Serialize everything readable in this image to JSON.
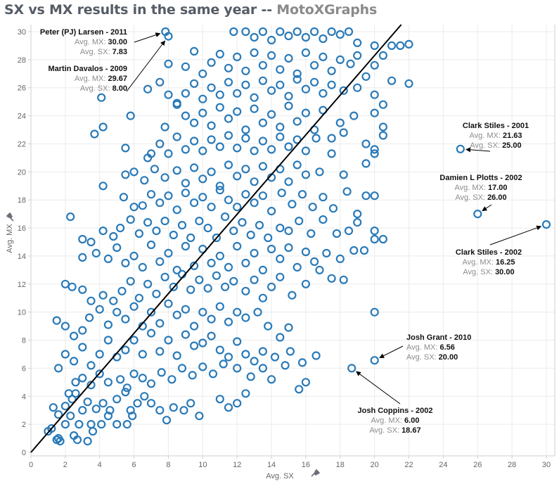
{
  "title": {
    "main": "SX vs MX results in the same year -- ",
    "brand": "MotoXGraphs"
  },
  "colors": {
    "marker": "#2a7ab8",
    "trend": "#000000",
    "grid": "#ebebeb",
    "axis": "#cfcfcf"
  },
  "chart_data": {
    "type": "scatter",
    "title": "SX vs MX results in the same year -- MotoXGraphs",
    "xlabel": "Avg. SX",
    "ylabel": "Avg. MX",
    "xlim": [
      0,
      30.5
    ],
    "ylim": [
      0,
      30.8
    ],
    "xticks": [
      0,
      2,
      4,
      6,
      8,
      10,
      12,
      14,
      16,
      18,
      20,
      22,
      24,
      26,
      28,
      30
    ],
    "yticks": [
      0,
      2,
      4,
      6,
      8,
      10,
      12,
      14,
      16,
      18,
      20,
      22,
      24,
      26,
      28,
      30
    ],
    "grid": true,
    "marker": "open-circle",
    "trend_line": {
      "slope": 1.415,
      "intercept": 0
    },
    "points": [
      [
        1.0,
        1.5
      ],
      [
        1.2,
        1.7
      ],
      [
        1.5,
        0.9
      ],
      [
        1.6,
        1.0
      ],
      [
        1.7,
        0.8
      ],
      [
        2.5,
        1.2
      ],
      [
        2.7,
        0.9
      ],
      [
        3.3,
        0.8
      ],
      [
        3.6,
        1.5
      ],
      [
        2.0,
        2.0
      ],
      [
        2.3,
        2.6
      ],
      [
        2.8,
        2.0
      ],
      [
        3.5,
        2.0
      ],
      [
        4.1,
        2.0
      ],
      [
        4.5,
        2.6
      ],
      [
        5.0,
        2.0
      ],
      [
        5.6,
        2.0
      ],
      [
        5.9,
        2.6
      ],
      [
        1.3,
        3.2
      ],
      [
        1.6,
        2.7
      ],
      [
        2.0,
        3.3
      ],
      [
        2.4,
        3.8
      ],
      [
        2.6,
        4.2
      ],
      [
        3.0,
        3.0
      ],
      [
        3.3,
        3.6
      ],
      [
        3.8,
        3.1
      ],
      [
        4.2,
        3.5
      ],
      [
        4.6,
        3.0
      ],
      [
        5.0,
        3.8
      ],
      [
        5.5,
        4.3
      ],
      [
        5.8,
        3.0
      ],
      [
        6.2,
        3.5
      ],
      [
        6.6,
        4.0
      ],
      [
        7.0,
        3.5
      ],
      [
        7.5,
        3.0
      ],
      [
        7.9,
        2.3
      ],
      [
        8.3,
        3.2
      ],
      [
        8.9,
        3.0
      ],
      [
        9.3,
        3.5
      ],
      [
        9.8,
        2.6
      ],
      [
        11.0,
        3.8
      ],
      [
        11.5,
        3.2
      ],
      [
        12.0,
        3.5
      ],
      [
        12.5,
        4.2
      ],
      [
        2.2,
        4.2
      ],
      [
        2.6,
        5.0
      ],
      [
        3.0,
        5.3
      ],
      [
        3.5,
        4.8
      ],
      [
        4.0,
        5.6
      ],
      [
        4.5,
        5.0
      ],
      [
        5.2,
        5.2
      ],
      [
        5.6,
        4.6
      ],
      [
        6.0,
        5.6
      ],
      [
        6.5,
        5.3
      ],
      [
        7.0,
        4.9
      ],
      [
        7.6,
        5.7
      ],
      [
        8.2,
        5.2
      ],
      [
        8.8,
        6.0
      ],
      [
        9.4,
        5.5
      ],
      [
        10.0,
        6.1
      ],
      [
        10.6,
        5.6
      ],
      [
        11.2,
        6.3
      ],
      [
        12.0,
        6.0
      ],
      [
        12.8,
        5.4
      ],
      [
        13.5,
        6.0
      ],
      [
        14.0,
        5.2
      ],
      [
        14.8,
        6.2
      ],
      [
        15.6,
        4.5
      ],
      [
        16.0,
        5.0
      ],
      [
        1.6,
        6.0
      ],
      [
        2.0,
        7.0
      ],
      [
        2.5,
        6.5
      ],
      [
        3.0,
        7.5
      ],
      [
        3.5,
        6.2
      ],
      [
        4.0,
        7.0
      ],
      [
        4.5,
        8.0
      ],
      [
        5.0,
        6.8
      ],
      [
        5.5,
        7.3
      ],
      [
        6.0,
        8.0
      ],
      [
        6.5,
        7.0
      ],
      [
        7.0,
        8.5
      ],
      [
        7.5,
        7.2
      ],
      [
        8.0,
        8.0
      ],
      [
        8.5,
        6.9
      ],
      [
        9.0,
        8.4
      ],
      [
        9.5,
        7.6
      ],
      [
        10.0,
        7.8
      ],
      [
        10.5,
        8.3
      ],
      [
        11.0,
        7.3
      ],
      [
        11.5,
        6.8
      ],
      [
        12.0,
        7.9
      ],
      [
        12.5,
        7.0
      ],
      [
        13.0,
        6.5
      ],
      [
        13.5,
        7.2
      ],
      [
        14.2,
        6.8
      ],
      [
        15.1,
        7.2
      ],
      [
        15.8,
        6.4
      ],
      [
        16.6,
        6.9
      ],
      [
        1.5,
        9.4
      ],
      [
        2.0,
        9.0
      ],
      [
        2.5,
        8.3
      ],
      [
        3.0,
        8.7
      ],
      [
        3.4,
        9.6
      ],
      [
        4.0,
        10.2
      ],
      [
        4.5,
        9.1
      ],
      [
        5.0,
        10.0
      ],
      [
        5.5,
        9.5
      ],
      [
        6.0,
        10.4
      ],
      [
        6.5,
        9.0
      ],
      [
        7.0,
        10.0
      ],
      [
        7.5,
        9.2
      ],
      [
        8.0,
        10.6
      ],
      [
        8.5,
        9.8
      ],
      [
        9.0,
        10.2
      ],
      [
        9.5,
        9.0
      ],
      [
        10.0,
        10.0
      ],
      [
        10.5,
        9.5
      ],
      [
        11.0,
        10.4
      ],
      [
        11.5,
        9.3
      ],
      [
        12.0,
        10.0
      ],
      [
        12.5,
        9.6
      ],
      [
        13.2,
        10.0
      ],
      [
        13.8,
        9.0
      ],
      [
        14.5,
        8.2
      ],
      [
        15.0,
        8.9
      ],
      [
        2.0,
        12.0
      ],
      [
        2.4,
        11.8
      ],
      [
        3.0,
        11.6
      ],
      [
        3.5,
        10.8
      ],
      [
        4.2,
        11.2
      ],
      [
        4.8,
        10.8
      ],
      [
        5.3,
        11.5
      ],
      [
        5.8,
        12.2
      ],
      [
        6.3,
        11.0
      ],
      [
        6.8,
        12.0
      ],
      [
        7.3,
        11.3
      ],
      [
        7.8,
        12.5
      ],
      [
        8.3,
        11.8
      ],
      [
        8.8,
        12.7
      ],
      [
        9.3,
        11.6
      ],
      [
        9.8,
        12.3
      ],
      [
        10.3,
        11.7
      ],
      [
        10.8,
        12.6
      ],
      [
        11.3,
        11.8
      ],
      [
        11.8,
        12.2
      ],
      [
        12.5,
        11.5
      ],
      [
        13.0,
        12.3
      ],
      [
        13.5,
        11.0
      ],
      [
        14.0,
        11.8
      ],
      [
        14.5,
        12.5
      ],
      [
        15.2,
        11.2
      ],
      [
        16.0,
        12.0
      ],
      [
        16.8,
        13.0
      ],
      [
        17.5,
        12.4
      ],
      [
        18.2,
        12.3
      ],
      [
        3.0,
        13.9
      ],
      [
        3.8,
        14.2
      ],
      [
        4.5,
        13.8
      ],
      [
        5.0,
        14.6
      ],
      [
        5.5,
        13.5
      ],
      [
        6.0,
        14.0
      ],
      [
        6.5,
        13.2
      ],
      [
        7.0,
        14.8
      ],
      [
        7.5,
        13.6
      ],
      [
        8.0,
        14.2
      ],
      [
        8.5,
        13.0
      ],
      [
        9.0,
        14.7
      ],
      [
        9.5,
        13.3
      ],
      [
        10.0,
        14.5
      ],
      [
        10.5,
        13.5
      ],
      [
        11.0,
        14.0
      ],
      [
        11.5,
        13.2
      ],
      [
        12.0,
        14.7
      ],
      [
        12.5,
        13.5
      ],
      [
        13.0,
        14.2
      ],
      [
        13.5,
        13.0
      ],
      [
        14.0,
        14.5
      ],
      [
        14.5,
        13.8
      ],
      [
        15.0,
        14.6
      ],
      [
        15.5,
        13.2
      ],
      [
        16.0,
        14.3
      ],
      [
        16.5,
        13.6
      ],
      [
        17.2,
        14.2
      ],
      [
        18.0,
        13.8
      ],
      [
        18.8,
        14.4
      ],
      [
        19.4,
        14.4
      ],
      [
        20.0,
        15.2
      ],
      [
        2.3,
        16.8
      ],
      [
        3.0,
        15.2
      ],
      [
        3.5,
        15.0
      ],
      [
        4.2,
        15.8
      ],
      [
        4.8,
        15.4
      ],
      [
        5.2,
        16.0
      ],
      [
        5.8,
        16.6
      ],
      [
        6.3,
        15.6
      ],
      [
        6.8,
        16.4
      ],
      [
        7.3,
        15.8
      ],
      [
        7.8,
        16.5
      ],
      [
        8.3,
        15.5
      ],
      [
        8.8,
        16.2
      ],
      [
        9.3,
        15.3
      ],
      [
        9.8,
        16.5
      ],
      [
        10.3,
        16.0
      ],
      [
        10.8,
        15.3
      ],
      [
        11.3,
        16.8
      ],
      [
        11.8,
        15.8
      ],
      [
        12.3,
        16.4
      ],
      [
        12.8,
        15.5
      ],
      [
        13.3,
        16.2
      ],
      [
        13.8,
        15.3
      ],
      [
        14.5,
        16.0
      ],
      [
        15.0,
        15.8
      ],
      [
        15.6,
        16.5
      ],
      [
        16.3,
        15.6
      ],
      [
        17.0,
        16.6
      ],
      [
        17.8,
        15.6
      ],
      [
        18.5,
        15.8
      ],
      [
        19.0,
        16.4
      ],
      [
        20.0,
        15.8
      ],
      [
        20.5,
        15.2
      ],
      [
        5.4,
        18.2
      ],
      [
        6.0,
        17.5
      ],
      [
        6.5,
        17.6
      ],
      [
        7.0,
        18.4
      ],
      [
        7.5,
        17.8
      ],
      [
        8.0,
        18.3
      ],
      [
        8.5,
        17.3
      ],
      [
        9.0,
        18.5
      ],
      [
        9.5,
        17.8
      ],
      [
        10.0,
        18.2
      ],
      [
        10.5,
        17.5
      ],
      [
        11.0,
        18.7
      ],
      [
        11.5,
        18.0
      ],
      [
        12.0,
        17.5
      ],
      [
        12.5,
        18.4
      ],
      [
        13.0,
        17.8
      ],
      [
        13.5,
        18.3
      ],
      [
        14.0,
        17.2
      ],
      [
        14.6,
        18.5
      ],
      [
        15.2,
        17.7
      ],
      [
        15.8,
        18.4
      ],
      [
        16.4,
        17.5
      ],
      [
        17.0,
        18.2
      ],
      [
        17.6,
        17.4
      ],
      [
        18.4,
        18.6
      ],
      [
        19.0,
        17.0
      ],
      [
        19.5,
        18.3
      ],
      [
        20.0,
        18.3
      ],
      [
        4.2,
        19.0
      ],
      [
        5.5,
        19.8
      ],
      [
        6.0,
        20.0
      ],
      [
        6.6,
        19.4
      ],
      [
        7.2,
        20.2
      ],
      [
        7.8,
        19.6
      ],
      [
        8.5,
        20.1
      ],
      [
        9.0,
        19.2
      ],
      [
        9.5,
        20.3
      ],
      [
        10.0,
        19.5
      ],
      [
        10.5,
        20.0
      ],
      [
        11.0,
        19.0
      ],
      [
        11.5,
        20.5
      ],
      [
        12.0,
        19.7
      ],
      [
        12.5,
        20.2
      ],
      [
        13.0,
        19.3
      ],
      [
        13.5,
        20.4
      ],
      [
        14.0,
        19.6
      ],
      [
        14.5,
        20.2
      ],
      [
        15.0,
        19.3
      ],
      [
        15.5,
        20.5
      ],
      [
        16.0,
        19.8
      ],
      [
        16.8,
        20.0
      ],
      [
        17.5,
        21.3
      ],
      [
        18.2,
        19.8
      ],
      [
        19.5,
        20.6
      ],
      [
        20.0,
        21.3
      ],
      [
        5.5,
        21.7
      ],
      [
        6.8,
        21.0
      ],
      [
        7.0,
        21.3
      ],
      [
        7.5,
        22.0
      ],
      [
        8.0,
        21.3
      ],
      [
        8.5,
        22.5
      ],
      [
        9.0,
        21.6
      ],
      [
        9.5,
        22.2
      ],
      [
        10.0,
        21.5
      ],
      [
        10.5,
        22.3
      ],
      [
        11.0,
        21.8
      ],
      [
        11.5,
        22.6
      ],
      [
        12.0,
        21.7
      ],
      [
        12.5,
        22.4
      ],
      [
        13.0,
        21.5
      ],
      [
        13.5,
        22.2
      ],
      [
        14.0,
        21.6
      ],
      [
        14.5,
        22.5
      ],
      [
        15.0,
        21.8
      ],
      [
        15.5,
        22.3
      ],
      [
        16.0,
        21.5
      ],
      [
        16.6,
        22.4
      ],
      [
        17.5,
        22.4
      ],
      [
        18.2,
        22.8
      ],
      [
        19.5,
        22.0
      ],
      [
        20.0,
        21.6
      ],
      [
        20.5,
        22.6
      ],
      [
        3.7,
        22.7
      ],
      [
        4.2,
        23.2
      ],
      [
        5.8,
        24.0
      ],
      [
        7.8,
        23.2
      ],
      [
        8.5,
        24.8
      ],
      [
        9.0,
        24.0
      ],
      [
        9.5,
        23.5
      ],
      [
        10.0,
        24.2
      ],
      [
        10.5,
        23.3
      ],
      [
        11.0,
        24.6
      ],
      [
        11.5,
        23.8
      ],
      [
        12.0,
        24.3
      ],
      [
        12.5,
        23.0
      ],
      [
        13.0,
        24.5
      ],
      [
        13.5,
        23.5
      ],
      [
        14.0,
        24.1
      ],
      [
        14.5,
        23.2
      ],
      [
        15.0,
        24.7
      ],
      [
        15.5,
        23.6
      ],
      [
        16.0,
        24.2
      ],
      [
        16.5,
        23.0
      ],
      [
        17.0,
        24.4
      ],
      [
        18.0,
        23.5
      ],
      [
        18.8,
        24.0
      ],
      [
        20.0,
        24.2
      ],
      [
        20.5,
        24.8
      ],
      [
        20.5,
        23.2
      ],
      [
        4.1,
        25.3
      ],
      [
        6.8,
        25.9
      ],
      [
        7.5,
        26.4
      ],
      [
        8.0,
        25.5
      ],
      [
        8.5,
        24.9
      ],
      [
        9.0,
        25.6
      ],
      [
        9.5,
        26.3
      ],
      [
        10.0,
        25.2
      ],
      [
        10.5,
        26.0
      ],
      [
        11.0,
        25.5
      ],
      [
        11.5,
        26.4
      ],
      [
        12.0,
        25.6
      ],
      [
        12.5,
        26.2
      ],
      [
        13.0,
        25.3
      ],
      [
        13.5,
        26.5
      ],
      [
        14.0,
        25.8
      ],
      [
        14.5,
        26.2
      ],
      [
        15.0,
        25.4
      ],
      [
        15.5,
        26.6
      ],
      [
        16.0,
        25.9
      ],
      [
        16.5,
        26.4
      ],
      [
        17.0,
        25.6
      ],
      [
        17.5,
        26.2
      ],
      [
        18.2,
        25.8
      ],
      [
        19.0,
        26.0
      ],
      [
        19.5,
        26.8
      ],
      [
        20.0,
        25.5
      ],
      [
        21.0,
        26.5
      ],
      [
        22.0,
        26.3
      ],
      [
        8.0,
        27.7
      ],
      [
        9.0,
        27.5
      ],
      [
        9.5,
        28.6
      ],
      [
        10.0,
        27.0
      ],
      [
        10.5,
        27.8
      ],
      [
        11.0,
        28.4
      ],
      [
        11.5,
        27.4
      ],
      [
        12.0,
        28.2
      ],
      [
        12.5,
        27.2
      ],
      [
        13.0,
        28.5
      ],
      [
        13.5,
        27.6
      ],
      [
        14.0,
        28.3
      ],
      [
        14.5,
        27.3
      ],
      [
        15.0,
        28.1
      ],
      [
        15.5,
        27.0
      ],
      [
        16.0,
        28.5
      ],
      [
        16.5,
        27.6
      ],
      [
        17.0,
        28.2
      ],
      [
        17.5,
        27.2
      ],
      [
        18.0,
        28.0
      ],
      [
        18.6,
        27.7
      ],
      [
        19.0,
        28.3
      ],
      [
        20.0,
        27.6
      ],
      [
        20.5,
        28.3
      ],
      [
        21.0,
        29.0
      ],
      [
        21.5,
        29.0
      ],
      [
        22.0,
        29.1
      ],
      [
        11.8,
        30.0
      ],
      [
        12.5,
        30.0
      ],
      [
        13.0,
        29.6
      ],
      [
        13.5,
        30.0
      ],
      [
        14.0,
        29.4
      ],
      [
        14.5,
        30.0
      ],
      [
        15.0,
        29.7
      ],
      [
        15.5,
        30.0
      ],
      [
        16.0,
        29.6
      ],
      [
        16.5,
        30.0
      ],
      [
        17.0,
        29.5
      ],
      [
        17.5,
        30.0
      ],
      [
        18.0,
        29.8
      ],
      [
        18.5,
        30.0
      ],
      [
        19.0,
        29.2
      ],
      [
        20.0,
        29.0
      ],
      [
        7.83,
        30.0
      ],
      [
        8.0,
        29.67
      ],
      [
        25.0,
        21.63
      ],
      [
        26.0,
        17.0
      ],
      [
        30.0,
        16.25
      ],
      [
        20.0,
        6.56
      ],
      [
        18.67,
        6.0
      ],
      [
        20.0,
        10.0
      ]
    ],
    "annotations": [
      {
        "name": "Peter (PJ) Larsen - 2011",
        "mx": "30.00",
        "sx": "7.83",
        "x": 7.83,
        "y": 30.0,
        "side": "left"
      },
      {
        "name": "Martin Davalos - 2009",
        "mx": "29.67",
        "sx": "8.00",
        "x": 8.0,
        "y": 29.67,
        "side": "left"
      },
      {
        "name": "Clark Stiles - 2001",
        "mx": "21.63",
        "sx": "25.00",
        "x": 25.0,
        "y": 21.63,
        "side": "right"
      },
      {
        "name": "Damien L Plotts - 2002",
        "mx": "17.00",
        "sx": "26.00",
        "x": 26.0,
        "y": 17.0,
        "side": "right"
      },
      {
        "name": "Clark Stiles - 2002",
        "mx": "16.25",
        "sx": "30.00",
        "x": 30.0,
        "y": 16.25,
        "side": "right"
      },
      {
        "name": "Josh Grant - 2010",
        "mx": "6.56",
        "sx": "20.00",
        "x": 20.0,
        "y": 6.56,
        "side": "left"
      },
      {
        "name": "Josh Coppins - 2002",
        "mx": "6.00",
        "sx": "18.67",
        "x": 18.67,
        "y": 6.0,
        "side": "right"
      }
    ],
    "annotation_keys": {
      "mx": "Avg. MX: ",
      "sx": "Avg. SX: "
    }
  }
}
